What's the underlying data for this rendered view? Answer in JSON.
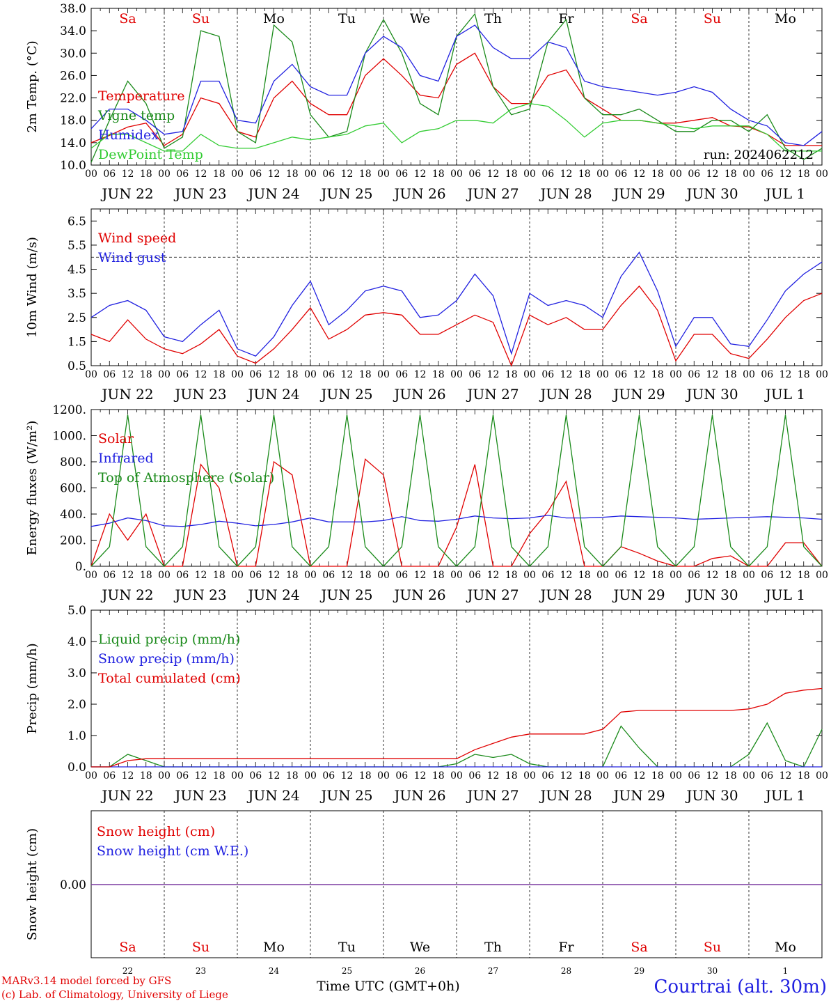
{
  "chart_data": [
    {
      "type": "line",
      "ylabel": "2m Temp. (°C)",
      "ylim": [
        10,
        38
      ],
      "yticks": [
        "10.0",
        "14.0",
        "18.0",
        "22.0",
        "26.0",
        "30.0",
        "34.0",
        "38.0"
      ],
      "run_label": "run: 2024062212",
      "x_hours": [
        0,
        6,
        12,
        18,
        24,
        30,
        36,
        42,
        48,
        54,
        60,
        66,
        72,
        78,
        84,
        90,
        96,
        102,
        108,
        114,
        120,
        126,
        132,
        138,
        144,
        150,
        156,
        162,
        168,
        174,
        180,
        186,
        192,
        198,
        204,
        210,
        216,
        222,
        228,
        234,
        240
      ],
      "series": [
        {
          "name": "Temperature",
          "color": "#e00000",
          "values": [
            14,
            15.3,
            16.8,
            17.5,
            13.5,
            15.5,
            22,
            21,
            16,
            15,
            22,
            25,
            21,
            19,
            19,
            26,
            29,
            26,
            22.5,
            22,
            28,
            30,
            24,
            21,
            21,
            26,
            27,
            22,
            20,
            18,
            18,
            17.5,
            17.5,
            18,
            18.5,
            17,
            16.8,
            15.5,
            13.5,
            13.5,
            13.5
          ]
        },
        {
          "name": "Vigne temp",
          "color": "#1a8a1a",
          "values": [
            10.5,
            18,
            25,
            21,
            13,
            15,
            34,
            33,
            16,
            14,
            35,
            32,
            19,
            15,
            16,
            30,
            36,
            30,
            21,
            19,
            33,
            37,
            24,
            19,
            20,
            32,
            36,
            22,
            19,
            19,
            20,
            18,
            16,
            16,
            18,
            18,
            16,
            19,
            13,
            11,
            13
          ]
        },
        {
          "name": "Humidex",
          "color": "#2020e0",
          "values": [
            16.5,
            20,
            20,
            18,
            15.5,
            16,
            25,
            25,
            18,
            17.5,
            25,
            28,
            24,
            22.5,
            22.5,
            30,
            33,
            31,
            26,
            25,
            33,
            35,
            31,
            29,
            29,
            32,
            31,
            25,
            24,
            23.5,
            23,
            22.5,
            23,
            24,
            23,
            20,
            18,
            17,
            14,
            13.5,
            16
          ]
        },
        {
          "name": "DewPoint Temp",
          "color": "#33cc33",
          "values": [
            13,
            15.5,
            15.5,
            14,
            12.5,
            12.5,
            15.5,
            13.5,
            13,
            13,
            14,
            15,
            14.5,
            15,
            15.5,
            17,
            17.5,
            14,
            16,
            16.5,
            18,
            18,
            17.5,
            20,
            21,
            20.5,
            18,
            15,
            17.5,
            18,
            18,
            17.5,
            17,
            16.5,
            17,
            17,
            17,
            15.5,
            12.5,
            12.5,
            12.5
          ]
        }
      ]
    },
    {
      "type": "line",
      "ylabel": "10m Wind (m/s)",
      "ylim": [
        0.5,
        7
      ],
      "yticks": [
        "0.5",
        "1.5",
        "2.5",
        "3.5",
        "4.5",
        "5.5",
        "6.5"
      ],
      "reference_line": 5.0,
      "x_hours": [
        0,
        6,
        12,
        18,
        24,
        30,
        36,
        42,
        48,
        54,
        60,
        66,
        72,
        78,
        84,
        90,
        96,
        102,
        108,
        114,
        120,
        126,
        132,
        138,
        144,
        150,
        156,
        162,
        168,
        174,
        180,
        186,
        192,
        198,
        204,
        210,
        216,
        222,
        228,
        234,
        240
      ],
      "series": [
        {
          "name": "Wind speed",
          "color": "#e00000",
          "values": [
            1.8,
            1.5,
            2.4,
            1.6,
            1.2,
            1.0,
            1.4,
            2.0,
            0.9,
            0.6,
            1.2,
            2.0,
            2.9,
            1.6,
            2.0,
            2.6,
            2.7,
            2.6,
            1.8,
            1.8,
            2.2,
            2.6,
            2.3,
            0.5,
            2.6,
            2.2,
            2.5,
            2.0,
            2.0,
            3.0,
            3.8,
            2.8,
            0.7,
            1.8,
            1.8,
            1.0,
            0.8,
            1.6,
            2.5,
            3.2,
            3.5
          ]
        },
        {
          "name": "Wind gust",
          "color": "#2020e0",
          "values": [
            2.5,
            3.0,
            3.2,
            2.8,
            1.7,
            1.5,
            2.2,
            2.8,
            1.2,
            0.9,
            1.7,
            3.0,
            4.0,
            2.2,
            2.8,
            3.6,
            3.8,
            3.6,
            2.5,
            2.6,
            3.2,
            4.3,
            3.4,
            1.0,
            3.5,
            3.0,
            3.2,
            3.0,
            2.5,
            4.2,
            5.2,
            3.6,
            1.3,
            2.5,
            2.5,
            1.4,
            1.3,
            2.4,
            3.6,
            4.3,
            4.8
          ]
        }
      ]
    },
    {
      "type": "line",
      "ylabel": "Energy fluxes (W/m²)",
      "ylim": [
        0,
        1200
      ],
      "yticks": [
        "0.",
        "200.",
        "400.",
        "600.",
        "800.",
        "1000.",
        "1200."
      ],
      "x_hours": [
        0,
        6,
        12,
        18,
        24,
        30,
        36,
        42,
        48,
        54,
        60,
        66,
        72,
        78,
        84,
        90,
        96,
        102,
        108,
        114,
        120,
        126,
        132,
        138,
        144,
        150,
        156,
        162,
        168,
        174,
        180,
        186,
        192,
        198,
        204,
        210,
        216,
        222,
        228,
        234,
        240
      ],
      "series": [
        {
          "name": "Solar",
          "color": "#e00000",
          "values": [
            0,
            400,
            200,
            400,
            0,
            0,
            780,
            600,
            0,
            0,
            800,
            700,
            0,
            0,
            0,
            820,
            700,
            0,
            0,
            0,
            300,
            780,
            0,
            0,
            250,
            420,
            650,
            0,
            0,
            150,
            100,
            40,
            0,
            0,
            60,
            80,
            0,
            0,
            180,
            180,
            0
          ]
        },
        {
          "name": "Infrared",
          "color": "#2020e0",
          "values": [
            305,
            330,
            370,
            350,
            310,
            305,
            320,
            345,
            330,
            310,
            320,
            340,
            370,
            340,
            340,
            340,
            350,
            380,
            350,
            345,
            360,
            385,
            370,
            365,
            370,
            390,
            370,
            370,
            375,
            385,
            380,
            375,
            370,
            360,
            365,
            370,
            375,
            380,
            375,
            370,
            360
          ]
        },
        {
          "name": "Top of Atmosphere (Solar)",
          "color": "#1a8a1a",
          "values": [
            0,
            150,
            1160,
            150,
            0,
            150,
            1160,
            150,
            0,
            150,
            1160,
            150,
            0,
            150,
            1160,
            150,
            0,
            150,
            1160,
            150,
            0,
            150,
            1160,
            150,
            0,
            150,
            1160,
            150,
            0,
            150,
            1160,
            150,
            0,
            150,
            1160,
            150,
            0,
            150,
            1160,
            150,
            0
          ]
        }
      ]
    },
    {
      "type": "line",
      "ylabel": "Precip (mm/h)",
      "ylim": [
        0,
        5
      ],
      "yticks": [
        "0.0",
        "1.0",
        "2.0",
        "3.0",
        "4.0",
        "5.0"
      ],
      "x_hours": [
        0,
        6,
        12,
        18,
        24,
        30,
        36,
        42,
        48,
        54,
        60,
        66,
        72,
        78,
        84,
        90,
        96,
        102,
        108,
        114,
        120,
        126,
        132,
        138,
        144,
        150,
        156,
        162,
        168,
        174,
        180,
        186,
        192,
        198,
        204,
        210,
        216,
        222,
        228,
        234,
        240
      ],
      "series": [
        {
          "name": "Liquid precip (mm/h)",
          "color": "#1a8a1a",
          "values": [
            0,
            0,
            0.4,
            0.2,
            0,
            0,
            0,
            0,
            0,
            0,
            0,
            0,
            0,
            0,
            0,
            0,
            0,
            0,
            0,
            0,
            0.1,
            0.4,
            0.3,
            0.4,
            0.1,
            0,
            0,
            0,
            0,
            1.3,
            0.6,
            0,
            0,
            0,
            0,
            0,
            0.4,
            1.4,
            0.2,
            0,
            1.2
          ]
        },
        {
          "name": "Snow precip (mm/h)",
          "color": "#2020e0",
          "values": [
            0,
            0,
            0,
            0,
            0,
            0,
            0,
            0,
            0,
            0,
            0,
            0,
            0,
            0,
            0,
            0,
            0,
            0,
            0,
            0,
            0,
            0,
            0,
            0,
            0,
            0,
            0,
            0,
            0,
            0,
            0,
            0,
            0,
            0,
            0,
            0,
            0,
            0,
            0,
            0,
            0
          ]
        },
        {
          "name": "Total cumulated (cm)",
          "color": "#e00000",
          "values": [
            0,
            0,
            0.2,
            0.26,
            0.26,
            0.26,
            0.26,
            0.26,
            0.26,
            0.26,
            0.26,
            0.26,
            0.26,
            0.26,
            0.26,
            0.26,
            0.26,
            0.26,
            0.26,
            0.26,
            0.26,
            0.55,
            0.75,
            0.95,
            1.05,
            1.05,
            1.05,
            1.05,
            1.2,
            1.75,
            1.8,
            1.8,
            1.8,
            1.8,
            1.8,
            1.8,
            1.85,
            2.0,
            2.35,
            2.45,
            2.5
          ]
        }
      ]
    },
    {
      "type": "line",
      "ylabel": "Snow height (cm)",
      "yticks": [
        "0.00"
      ],
      "series": [
        {
          "name": "Snow height (cm)",
          "color": "#e00000",
          "values": [
            0,
            0
          ]
        },
        {
          "name": "Snow height (cm W.E.)",
          "color": "#2020e0",
          "values": [
            0,
            0
          ]
        }
      ]
    }
  ],
  "days": [
    {
      "abbr": "Sa",
      "weekend": true,
      "month_label": "JUN 22",
      "num": "22"
    },
    {
      "abbr": "Su",
      "weekend": true,
      "month_label": "JUN 23",
      "num": "23"
    },
    {
      "abbr": "Mo",
      "weekend": false,
      "month_label": "JUN 24",
      "num": "24"
    },
    {
      "abbr": "Tu",
      "weekend": false,
      "month_label": "JUN 25",
      "num": "25"
    },
    {
      "abbr": "We",
      "weekend": false,
      "month_label": "JUN 26",
      "num": "26"
    },
    {
      "abbr": "Th",
      "weekend": false,
      "month_label": "JUN 27",
      "num": "27"
    },
    {
      "abbr": "Fr",
      "weekend": false,
      "month_label": "JUN 28",
      "num": "28"
    },
    {
      "abbr": "Sa",
      "weekend": true,
      "month_label": "JUN 29",
      "num": "29"
    },
    {
      "abbr": "Su",
      "weekend": true,
      "month_label": "JUN 30",
      "num": "30"
    },
    {
      "abbr": "Mo",
      "weekend": false,
      "month_label": "JUL  1",
      "num": "1"
    }
  ],
  "hour_ticks": [
    "00",
    "06",
    "12",
    "18"
  ],
  "end_tick": "00",
  "colors": {
    "weekend": "#e00000",
    "weekday": "#000000",
    "snow_line": "#7a3aa0"
  },
  "footer": {
    "credit_line1": "MARv3.14 model forced by GFS",
    "credit_line2": "(c) Lab. of Climatology, University of Liege",
    "time_label": "Time UTC (GMT+0h)",
    "station": "Courtrai (alt. 30m)"
  }
}
